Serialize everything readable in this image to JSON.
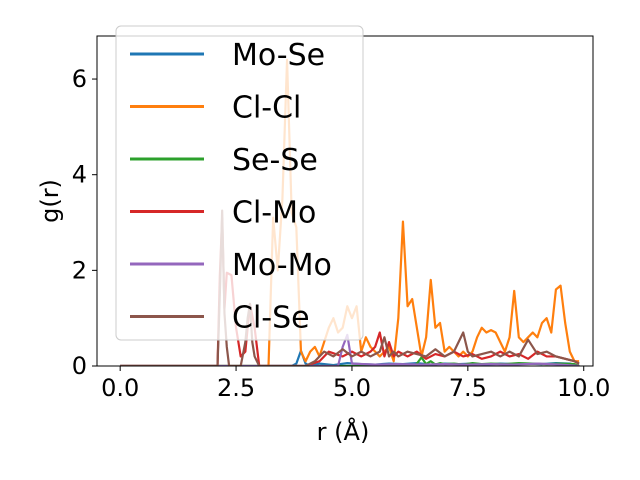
{
  "chart_data": {
    "type": "line",
    "xlabel": "r (Å)",
    "ylabel": "g(r)",
    "xlim": [
      -0.5,
      10.2
    ],
    "ylim": [
      0,
      6.9
    ],
    "xticks": [
      0.0,
      2.5,
      5.0,
      7.5,
      10.0
    ],
    "xtick_labels": [
      "0.0",
      "2.5",
      "5.0",
      "7.5",
      "10.0"
    ],
    "yticks": [
      0,
      2,
      4,
      6
    ],
    "ytick_labels": [
      "0",
      "2",
      "4",
      "6"
    ],
    "grid": false,
    "legend_position": "upper-left",
    "series": [
      {
        "name": "Mo-Se",
        "color": "#1f77b4",
        "x": [
          0.0,
          3.7,
          3.8,
          3.9,
          4.0,
          4.1,
          4.3,
          4.6,
          4.9,
          5.2,
          5.5,
          5.8,
          6.1,
          6.4,
          6.7,
          7.0,
          7.3,
          7.6,
          7.9,
          8.2,
          8.5,
          8.8,
          9.1,
          9.4,
          9.7,
          9.9
        ],
        "y": [
          0.0,
          0.0,
          0.05,
          0.32,
          0.05,
          0.0,
          0.05,
          0.02,
          0.06,
          0.04,
          0.03,
          0.05,
          0.04,
          0.06,
          0.03,
          0.05,
          0.04,
          0.05,
          0.03,
          0.05,
          0.04,
          0.05,
          0.04,
          0.06,
          0.05,
          0.0
        ]
      },
      {
        "name": "Cl-Cl",
        "color": "#ff7f0e",
        "x": [
          0.0,
          3.2,
          3.3,
          3.4,
          3.5,
          3.6,
          3.7,
          3.8,
          3.9,
          4.0,
          4.1,
          4.2,
          4.3,
          4.4,
          4.5,
          4.6,
          4.7,
          4.8,
          4.9,
          5.0,
          5.1,
          5.2,
          5.3,
          5.4,
          5.5,
          5.6,
          5.7,
          5.8,
          5.9,
          6.0,
          6.1,
          6.2,
          6.3,
          6.4,
          6.5,
          6.6,
          6.7,
          6.8,
          6.9,
          7.0,
          7.1,
          7.2,
          7.3,
          7.4,
          7.5,
          7.6,
          7.7,
          7.8,
          7.9,
          8.0,
          8.1,
          8.2,
          8.3,
          8.4,
          8.5,
          8.6,
          8.7,
          8.8,
          8.9,
          9.0,
          9.1,
          9.2,
          9.3,
          9.4,
          9.5,
          9.6,
          9.7,
          9.8,
          9.9
        ],
        "y": [
          0.0,
          0.0,
          3.1,
          2.0,
          3.5,
          6.4,
          3.2,
          2.9,
          0.3,
          0.1,
          0.3,
          0.4,
          0.2,
          0.5,
          0.8,
          1.0,
          0.7,
          0.8,
          1.25,
          1.0,
          1.25,
          0.3,
          0.6,
          0.4,
          0.3,
          0.2,
          0.3,
          0.4,
          0.1,
          1.0,
          3.02,
          1.25,
          1.4,
          0.8,
          0.2,
          0.6,
          1.8,
          0.8,
          0.9,
          0.3,
          0.4,
          0.3,
          0.2,
          0.3,
          0.2,
          0.3,
          0.6,
          0.8,
          0.7,
          0.75,
          0.7,
          0.5,
          0.3,
          0.6,
          1.57,
          0.6,
          0.5,
          0.6,
          0.7,
          0.6,
          0.9,
          1.0,
          0.7,
          1.6,
          1.68,
          0.9,
          0.3,
          0.1,
          0.1
        ]
      },
      {
        "name": "Se-Se",
        "color": "#2ca02c",
        "x": [
          0.0,
          6.3,
          6.4,
          6.5,
          6.6,
          6.7,
          6.8,
          6.9,
          7.0,
          7.2,
          7.4,
          7.6,
          7.8,
          8.0,
          8.3,
          8.6,
          8.9,
          9.2,
          9.5,
          9.8,
          9.9
        ],
        "y": [
          0.0,
          0.0,
          0.05,
          0.18,
          0.04,
          0.1,
          0.03,
          0.06,
          0.04,
          0.05,
          0.03,
          0.06,
          0.04,
          0.05,
          0.04,
          0.06,
          0.05,
          0.04,
          0.05,
          0.04,
          0.0
        ]
      },
      {
        "name": "Cl-Mo",
        "color": "#d62728",
        "x": [
          0.0,
          2.1,
          2.15,
          2.2,
          2.25,
          2.3,
          2.4,
          2.5,
          2.6,
          2.7,
          2.8,
          2.9,
          3.0,
          3.5,
          4.0,
          4.3,
          4.5,
          4.8,
          5.0,
          5.2,
          5.4,
          5.5,
          5.6,
          5.7,
          5.8,
          5.9,
          6.0,
          6.2,
          6.4,
          6.6,
          6.8,
          7.0,
          7.2,
          7.4,
          7.6,
          7.8,
          8.0,
          8.2,
          8.4,
          8.6,
          8.8,
          9.0,
          9.2,
          9.4,
          9.6,
          9.8,
          9.9
        ],
        "y": [
          0.0,
          0.0,
          1.9,
          3.1,
          1.2,
          1.95,
          1.9,
          0.8,
          0.2,
          0.3,
          1.3,
          0.8,
          0.0,
          0.0,
          0.0,
          0.1,
          0.3,
          0.2,
          0.3,
          0.2,
          0.3,
          0.4,
          0.7,
          0.2,
          0.5,
          0.2,
          0.3,
          0.2,
          0.3,
          0.15,
          0.25,
          0.2,
          0.3,
          0.2,
          0.25,
          0.15,
          0.2,
          0.3,
          0.2,
          0.25,
          0.15,
          0.3,
          0.2,
          0.2,
          0.15,
          0.1,
          0.05
        ]
      },
      {
        "name": "Mo-Mo",
        "color": "#9467bd",
        "x": [
          0.0,
          4.7,
          4.8,
          4.9,
          5.0,
          5.5,
          6.0,
          6.5,
          7.0,
          7.5,
          8.0,
          8.5,
          9.0,
          9.5,
          9.9
        ],
        "y": [
          0.0,
          0.0,
          0.4,
          0.65,
          0.05,
          0.03,
          0.04,
          0.03,
          0.04,
          0.03,
          0.04,
          0.03,
          0.05,
          0.03,
          0.0
        ]
      },
      {
        "name": "Cl-Se",
        "color": "#8c564b",
        "x": [
          0.0,
          2.1,
          2.15,
          2.2,
          2.25,
          2.3,
          2.35,
          2.6,
          2.7,
          2.75,
          2.8,
          2.85,
          2.9,
          3.0,
          4.0,
          4.2,
          4.4,
          4.6,
          4.8,
          5.0,
          5.2,
          5.4,
          5.6,
          5.7,
          5.8,
          5.9,
          6.0,
          6.2,
          6.4,
          6.6,
          6.8,
          7.0,
          7.2,
          7.4,
          7.5,
          7.6,
          7.8,
          8.0,
          8.2,
          8.4,
          8.6,
          8.8,
          9.0,
          9.2,
          9.4,
          9.6,
          9.8,
          9.9
        ],
        "y": [
          0.0,
          0.0,
          1.5,
          3.25,
          1.1,
          0.4,
          0.0,
          0.0,
          0.5,
          1.0,
          1.3,
          0.5,
          0.2,
          0.0,
          0.0,
          0.1,
          0.3,
          0.2,
          0.35,
          0.2,
          0.3,
          0.2,
          0.3,
          0.6,
          0.2,
          0.3,
          0.2,
          0.3,
          0.25,
          0.2,
          0.35,
          0.2,
          0.3,
          0.7,
          0.3,
          0.2,
          0.25,
          0.3,
          0.2,
          0.3,
          0.2,
          0.55,
          0.25,
          0.3,
          0.2,
          0.15,
          0.1,
          0.05
        ]
      }
    ]
  }
}
